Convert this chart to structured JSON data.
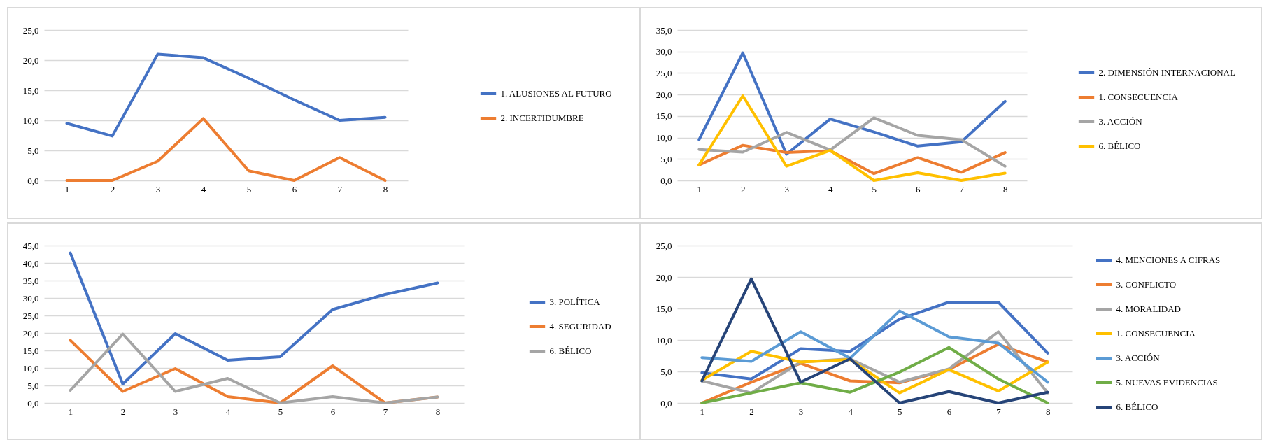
{
  "chart_data": [
    {
      "type": "line",
      "categories": [
        "1",
        "2",
        "3",
        "4",
        "5",
        "6",
        "7",
        "8"
      ],
      "ylim": [
        0,
        25
      ],
      "yticks": [
        {
          "value": 0,
          "label": "0,0"
        },
        {
          "value": 5,
          "label": "5,0"
        },
        {
          "value": 10,
          "label": "10,0"
        },
        {
          "value": 15,
          "label": "15,0"
        },
        {
          "value": 20,
          "label": "20,0"
        },
        {
          "value": 25,
          "label": "25,0"
        }
      ],
      "grid": "y",
      "legend": "right",
      "line_style": "solid",
      "series": [
        {
          "name": "1. ALUSIONES AL FUTURO",
          "color": "#4472c4",
          "values": [
            9.5,
            7.4,
            21.0,
            20.4,
            17.0,
            13.4,
            10.0,
            10.5
          ]
        },
        {
          "name": "2. INCERTIDUMBRE",
          "color": "#ed7d31",
          "values": [
            0,
            0,
            3.2,
            10.3,
            1.6,
            0,
            3.8,
            0
          ]
        }
      ]
    },
    {
      "type": "line",
      "categories": [
        "1",
        "2",
        "3",
        "4",
        "5",
        "6",
        "7",
        "8"
      ],
      "ylim": [
        0,
        35
      ],
      "yticks": [
        {
          "value": 0,
          "label": "0,0"
        },
        {
          "value": 5,
          "label": "5,0"
        },
        {
          "value": 10,
          "label": "10,0"
        },
        {
          "value": 15,
          "label": "15,0"
        },
        {
          "value": 20,
          "label": "20,0"
        },
        {
          "value": 25,
          "label": "25,0"
        },
        {
          "value": 30,
          "label": "30,0"
        },
        {
          "value": 35,
          "label": "35,0"
        }
      ],
      "grid": "y",
      "legend": "right",
      "line_style": "solid",
      "series": [
        {
          "name": "2. DIMENSIÓN INTERNACIONAL",
          "color": "#4472c4",
          "values": [
            9.5,
            29.7,
            6.1,
            14.3,
            11.3,
            8.0,
            9.0,
            18.4
          ]
        },
        {
          "name": "1. CONSECUENCIA",
          "color": "#ed7d31",
          "values": [
            3.6,
            8.2,
            6.5,
            6.9,
            1.6,
            5.3,
            1.9,
            6.5
          ]
        },
        {
          "name": "3. ACCIÓN",
          "color": "#a5a5a5",
          "values": [
            7.2,
            6.6,
            11.2,
            7.1,
            14.6,
            10.5,
            9.5,
            3.3
          ]
        },
        {
          "name": "6. BÉLICO",
          "color": "#ffc000",
          "values": [
            3.6,
            19.7,
            3.3,
            7.0,
            0,
            1.8,
            0,
            1.7
          ]
        }
      ]
    },
    {
      "type": "line",
      "categories": [
        "1",
        "2",
        "3",
        "4",
        "5",
        "6",
        "7",
        "8"
      ],
      "ylim": [
        0,
        45
      ],
      "yticks": [
        {
          "value": 0,
          "label": "0,0"
        },
        {
          "value": 5,
          "label": "5,0"
        },
        {
          "value": 10,
          "label": "10,0"
        },
        {
          "value": 15,
          "label": "15,0"
        },
        {
          "value": 20,
          "label": "20,0"
        },
        {
          "value": 25,
          "label": "25,0"
        },
        {
          "value": 30,
          "label": "30,0"
        },
        {
          "value": 35,
          "label": "35,0"
        },
        {
          "value": 40,
          "label": "40,0"
        },
        {
          "value": 45,
          "label": "45,0"
        }
      ],
      "grid": "y",
      "legend": "right",
      "line_style": "solid",
      "series": [
        {
          "name": "3. POLÍTICA",
          "color": "#4472c4",
          "values": [
            42.9,
            5.4,
            19.8,
            12.2,
            13.2,
            26.7,
            31.0,
            34.3
          ]
        },
        {
          "name": "4. SEGURIDAD",
          "color": "#ed7d31",
          "values": [
            17.9,
            3.3,
            9.8,
            1.8,
            0,
            10.6,
            0,
            1.7
          ]
        },
        {
          "name": "6. BÉLICO",
          "color": "#a5a5a5",
          "values": [
            3.6,
            19.7,
            3.3,
            7.0,
            0,
            1.8,
            0,
            1.7
          ]
        }
      ]
    },
    {
      "type": "line",
      "categories": [
        "1",
        "2",
        "3",
        "4",
        "5",
        "6",
        "7",
        "8"
      ],
      "ylim": [
        0,
        25
      ],
      "yticks": [
        {
          "value": 0,
          "label": "0,0"
        },
        {
          "value": 5,
          "label": "5,0"
        },
        {
          "value": 10,
          "label": "10,0"
        },
        {
          "value": 15,
          "label": "15,0"
        },
        {
          "value": 20,
          "label": "20,0"
        },
        {
          "value": 25,
          "label": "25,0"
        }
      ],
      "grid": "y",
      "legend": "right",
      "line_style": "solid",
      "series": [
        {
          "name": "4. MENCIONES A CIFRAS",
          "color": "#4472c4",
          "values": [
            4.8,
            3.8,
            8.6,
            8.2,
            13.3,
            16.0,
            16.0,
            7.9
          ]
        },
        {
          "name": "3. CONFLICTO",
          "color": "#ed7d31",
          "values": [
            0,
            3.3,
            6.3,
            3.5,
            3.2,
            5.3,
            9.3,
            6.5
          ]
        },
        {
          "name": "4. MORALIDAD",
          "color": "#a5a5a5",
          "values": [
            3.5,
            1.6,
            6.5,
            7.0,
            3.3,
            5.4,
            11.3,
            1.6
          ]
        },
        {
          "name": "1. CONSECUENCIA",
          "color": "#ffc000",
          "values": [
            3.6,
            8.2,
            6.5,
            6.9,
            1.6,
            5.3,
            1.9,
            6.5
          ]
        },
        {
          "name": "3. ACCIÓN",
          "color": "#5b9bd5",
          "values": [
            7.2,
            6.6,
            11.3,
            7.1,
            14.6,
            10.5,
            9.5,
            3.3
          ]
        },
        {
          "name": "5. NUEVAS EVIDENCIAS",
          "color": "#70ad47",
          "values": [
            0,
            1.6,
            3.2,
            1.7,
            4.9,
            8.8,
            3.8,
            0
          ]
        },
        {
          "name": "6. BÉLICO",
          "color": "#264478",
          "values": [
            3.5,
            19.7,
            3.3,
            7.0,
            0,
            1.8,
            0,
            1.7
          ]
        }
      ]
    }
  ]
}
